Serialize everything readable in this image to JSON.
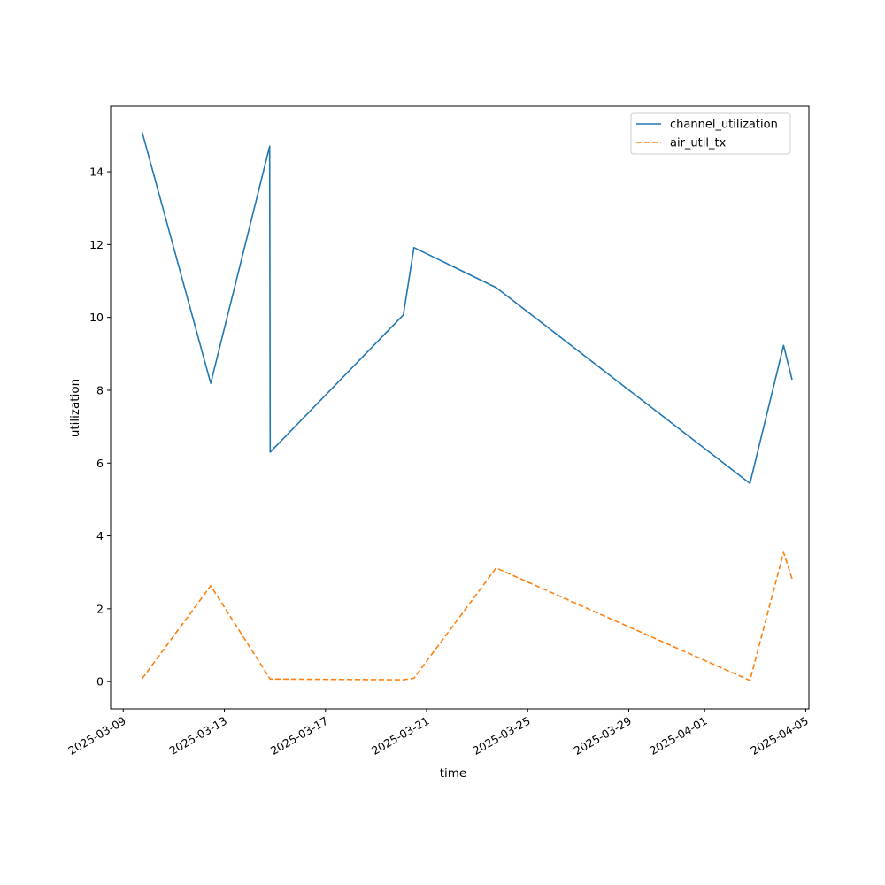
{
  "chart_data": {
    "type": "line",
    "title": "",
    "xlabel": "time",
    "ylabel": "utilization",
    "x_scale": "date",
    "xlim": [
      "2025-03-08T12:00",
      "2025-04-05T03:00"
    ],
    "ylim": [
      -0.75,
      15.8
    ],
    "x_ticks": [
      "2025-03-09",
      "2025-03-13",
      "2025-03-17",
      "2025-03-21",
      "2025-03-25",
      "2025-03-29",
      "2025-04-01",
      "2025-04-05"
    ],
    "y_ticks": [
      0,
      2,
      4,
      6,
      8,
      10,
      12,
      14
    ],
    "grid": false,
    "legend_position": "top-right",
    "series": [
      {
        "name": "channel_utilization",
        "color": "#1f77b4",
        "dash": "solid",
        "points": [
          {
            "x": "2025-03-09T18:00",
            "y": 15.08
          },
          {
            "x": "2025-03-12T11:00",
            "y": 8.19
          },
          {
            "x": "2025-03-14T19:00",
            "y": 14.7
          },
          {
            "x": "2025-03-14T19:30",
            "y": 6.3
          },
          {
            "x": "2025-03-20T02:00",
            "y": 10.07
          },
          {
            "x": "2025-03-20T12:00",
            "y": 11.92
          },
          {
            "x": "2025-03-23T18:00",
            "y": 10.82
          },
          {
            "x": "2025-04-02T19:00",
            "y": 5.44
          },
          {
            "x": "2025-04-04T03:00",
            "y": 9.23
          },
          {
            "x": "2025-04-04T11:00",
            "y": 8.29
          }
        ]
      },
      {
        "name": "air_util_tx",
        "color": "#ff7f0e",
        "dash": "dashed",
        "points": [
          {
            "x": "2025-03-09T18:00",
            "y": 0.08
          },
          {
            "x": "2025-03-12T11:00",
            "y": 2.63
          },
          {
            "x": "2025-03-14T19:30",
            "y": 0.07
          },
          {
            "x": "2025-03-20T02:00",
            "y": 0.05
          },
          {
            "x": "2025-03-20T12:00",
            "y": 0.09
          },
          {
            "x": "2025-03-23T18:00",
            "y": 3.12
          },
          {
            "x": "2025-04-02T19:00",
            "y": 0.03
          },
          {
            "x": "2025-04-04T03:00",
            "y": 3.55
          },
          {
            "x": "2025-04-04T11:00",
            "y": 2.82
          }
        ]
      }
    ]
  }
}
